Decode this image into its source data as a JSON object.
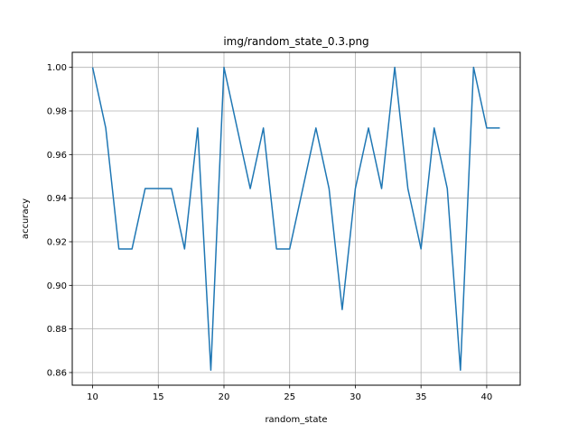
{
  "chart_data": {
    "type": "line",
    "title": "img/random_state_0.3.png",
    "xlabel": "random_state",
    "ylabel": "accuracy",
    "xlim": [
      8.45,
      42.55
    ],
    "ylim": [
      0.8542,
      1.0069
    ],
    "x_ticks": [
      10,
      15,
      20,
      25,
      30,
      35,
      40
    ],
    "y_ticks": [
      0.86,
      0.88,
      0.9,
      0.92,
      0.94,
      0.96,
      0.98,
      1.0
    ],
    "grid": true,
    "line_color": "#1f77b4",
    "series": [
      {
        "x": [
          10,
          11,
          12,
          13,
          14,
          15,
          16,
          17,
          18,
          19,
          20,
          21,
          22,
          23,
          24,
          25,
          26,
          27,
          28,
          29,
          30,
          31,
          32,
          33,
          34,
          35,
          36,
          37,
          38,
          39,
          40,
          41
        ],
        "values": [
          1.0,
          0.9722,
          0.9167,
          0.9167,
          0.9444,
          0.9444,
          0.9444,
          0.9167,
          0.9722,
          0.8611,
          1.0,
          0.9722,
          0.9444,
          0.9722,
          0.9167,
          0.9167,
          0.9444,
          0.9722,
          0.9444,
          0.8889,
          0.9444,
          0.9722,
          0.9444,
          1.0,
          0.9444,
          0.9167,
          0.9722,
          0.9444,
          0.8611,
          1.0,
          0.9722,
          0.9722
        ]
      }
    ]
  }
}
